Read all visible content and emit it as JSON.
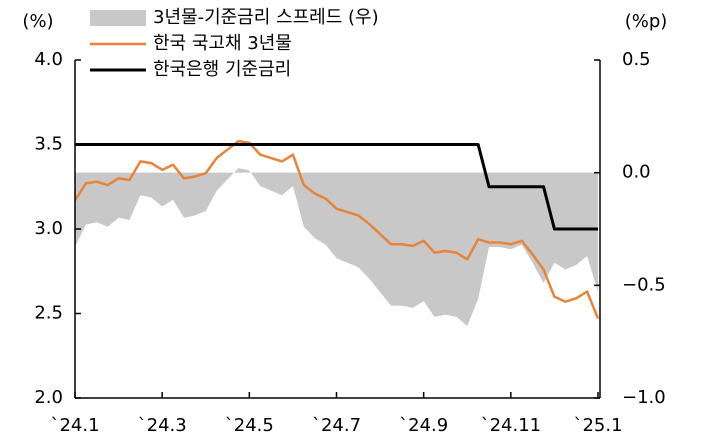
{
  "chart_data": {
    "type": "line",
    "ylabel": "(%)",
    "y2label": "(%p)",
    "categories": [
      "`24.1",
      null,
      null,
      null,
      null,
      null,
      null,
      null,
      "`24.3",
      null,
      null,
      null,
      null,
      null,
      null,
      null,
      "`24.5",
      null,
      null,
      null,
      null,
      null,
      null,
      null,
      "`24.7",
      null,
      null,
      null,
      null,
      null,
      null,
      null,
      "`24.9",
      null,
      null,
      null,
      null,
      null,
      null,
      null,
      "`24.11",
      null,
      null,
      null,
      null,
      null,
      null,
      null,
      "`25.1"
    ],
    "series": [
      {
        "name": "3년물-기준금리 스프레드 (우)",
        "type": "area",
        "axis": "y2",
        "color": "#c8c8c8",
        "values": [
          -0.33,
          -0.23,
          -0.22,
          -0.24,
          -0.2,
          -0.21,
          -0.1,
          -0.11,
          -0.15,
          -0.12,
          -0.2,
          -0.19,
          -0.17,
          -0.08,
          -0.03,
          0.02,
          0.01,
          -0.06,
          -0.08,
          -0.1,
          -0.06,
          -0.24,
          -0.29,
          -0.32,
          -0.38,
          -0.4,
          -0.42,
          -0.47,
          -0.53,
          -0.59,
          -0.59,
          -0.6,
          -0.57,
          -0.64,
          -0.63,
          -0.64,
          -0.68,
          -0.56,
          -0.33,
          -0.33,
          -0.34,
          -0.32,
          -0.4,
          -0.49,
          -0.4,
          -0.43,
          -0.41,
          -0.37,
          -0.53
        ]
      },
      {
        "name": "한국 국고채 3년물",
        "type": "line",
        "color": "#e8843a",
        "values": [
          3.17,
          3.27,
          3.28,
          3.26,
          3.3,
          3.29,
          3.4,
          3.39,
          3.35,
          3.38,
          3.3,
          3.31,
          3.33,
          3.42,
          3.47,
          3.52,
          3.51,
          3.44,
          3.42,
          3.4,
          3.44,
          3.26,
          3.21,
          3.18,
          3.12,
          3.1,
          3.08,
          3.03,
          2.97,
          2.91,
          2.91,
          2.9,
          2.93,
          2.86,
          2.87,
          2.86,
          2.82,
          2.94,
          2.92,
          2.92,
          2.91,
          2.93,
          2.85,
          2.76,
          2.6,
          2.57,
          2.59,
          2.63,
          2.47
        ]
      },
      {
        "name": "한국은행 기준금리",
        "type": "line",
        "color": "#000000",
        "values": [
          3.5,
          3.5,
          3.5,
          3.5,
          3.5,
          3.5,
          3.5,
          3.5,
          3.5,
          3.5,
          3.5,
          3.5,
          3.5,
          3.5,
          3.5,
          3.5,
          3.5,
          3.5,
          3.5,
          3.5,
          3.5,
          3.5,
          3.5,
          3.5,
          3.5,
          3.5,
          3.5,
          3.5,
          3.5,
          3.5,
          3.5,
          3.5,
          3.5,
          3.5,
          3.5,
          3.5,
          3.5,
          3.5,
          3.25,
          3.25,
          3.25,
          3.25,
          3.25,
          3.25,
          3.0,
          3.0,
          3.0,
          3.0,
          3.0
        ]
      }
    ],
    "ylim": [
      2.0,
      4.0
    ],
    "yticks": [
      {
        "value": 2,
        "label": "2.0"
      },
      {
        "value": 2.5,
        "label": "2.5"
      },
      {
        "value": 3,
        "label": "3.0"
      },
      {
        "value": 3.5,
        "label": "3.5"
      },
      {
        "value": 4,
        "label": "4.0"
      }
    ],
    "y2lim": [
      -1.0,
      0.5
    ],
    "y2ticks": [
      {
        "value": -1,
        "label": "−1.0"
      },
      {
        "value": -0.5,
        "label": "−0.5"
      },
      {
        "value": 0,
        "label": "0.0"
      },
      {
        "value": 0.5,
        "label": "0.5"
      }
    ],
    "legend": "upper left"
  }
}
